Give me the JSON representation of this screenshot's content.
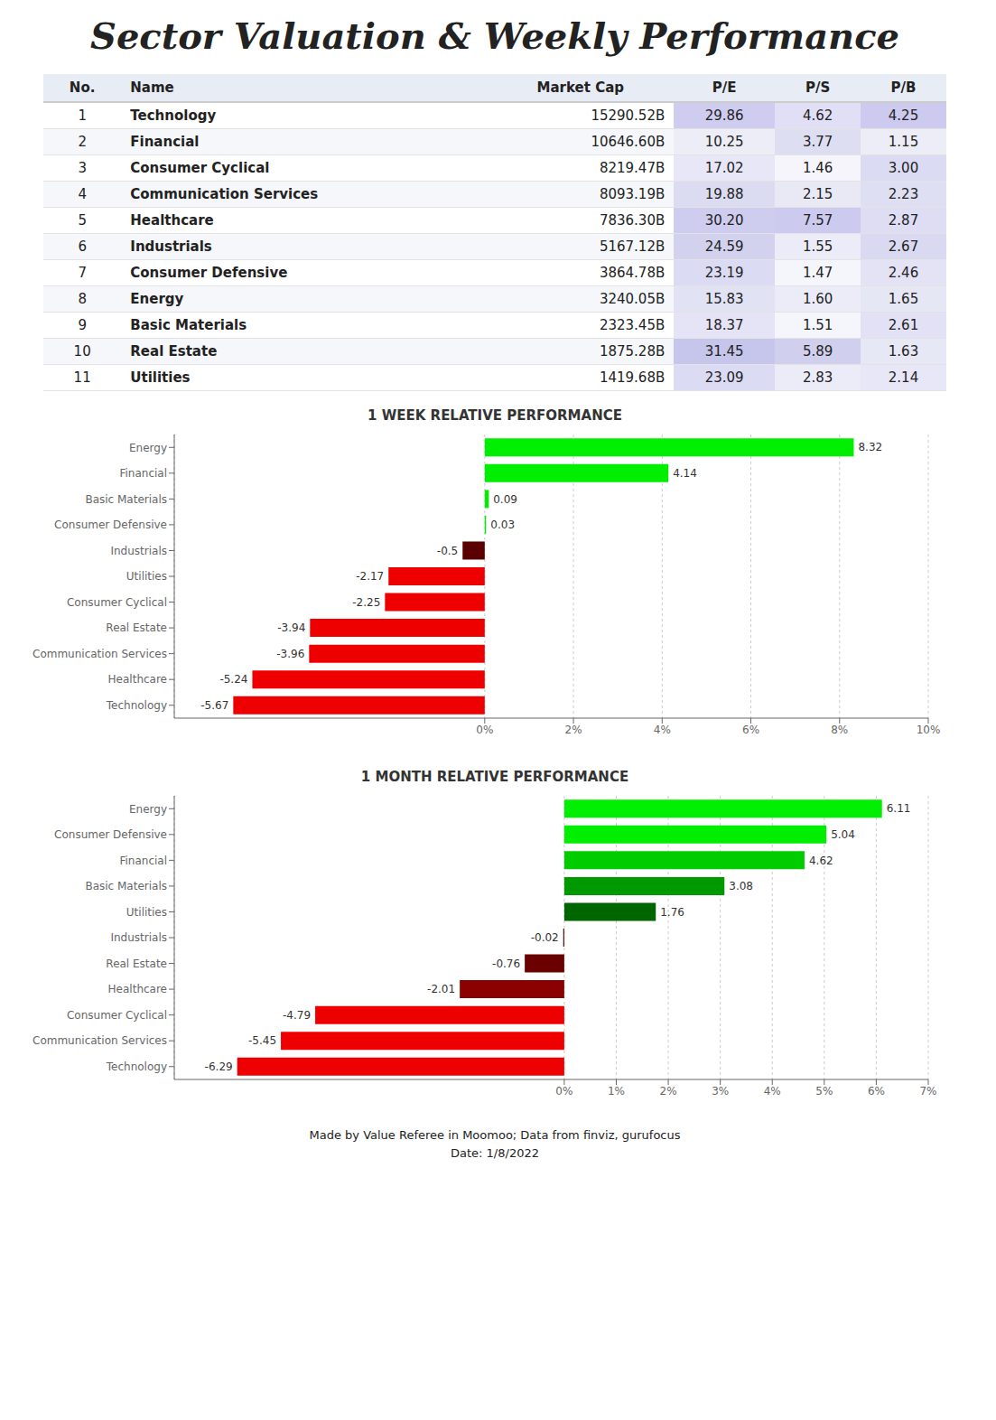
{
  "title": "Sector Valuation & Weekly Performance",
  "annotations": [
    "Made by Value Referee in Moomoo; Data from finviz, gurufocus",
    "Date: 1/8/2022"
  ],
  "chart_data": [
    {
      "type": "table",
      "xlabel": "Name",
      "categories": [
        "Technology",
        "Financial",
        "Consumer Cyclical",
        "Communication Services",
        "Healthcare",
        "Industrials",
        "Consumer Defensive",
        "Energy",
        "Basic Materials",
        "Real Estate",
        "Utilities"
      ],
      "series": [
        {
          "name": "No.",
          "values": [
            1,
            2,
            3,
            4,
            5,
            6,
            7,
            8,
            9,
            10,
            11
          ]
        },
        {
          "name": "Market Cap",
          "values": [
            15290.52,
            10646.6,
            8219.47,
            8093.19,
            7836.3,
            5167.12,
            3864.78,
            3240.05,
            2323.45,
            1875.28,
            1419.68
          ],
          "value_labels": [
            "15290.52B",
            "10646.60B",
            "8219.47B",
            "8093.19B",
            "7836.30B",
            "5167.12B",
            "3864.78B",
            "3240.05B",
            "2323.45B",
            "1875.28B",
            "1419.68B"
          ]
        },
        {
          "name": "P/E",
          "values": [
            29.86,
            10.25,
            17.02,
            19.88,
            30.2,
            24.59,
            23.19,
            15.83,
            18.37,
            31.45,
            23.09
          ],
          "value_labels": [
            "29.86",
            "10.25",
            "17.02",
            "19.88",
            "30.20",
            "24.59",
            "23.19",
            "15.83",
            "18.37",
            "31.45",
            "23.09"
          ]
        },
        {
          "name": "P/S",
          "values": [
            4.62,
            3.77,
            1.46,
            2.15,
            7.57,
            1.55,
            1.47,
            1.6,
            1.51,
            5.89,
            2.83
          ],
          "value_labels": [
            "4.62",
            "3.77",
            "1.46",
            "2.15",
            "7.57",
            "1.55",
            "1.47",
            "1.60",
            "1.51",
            "5.89",
            "2.83"
          ]
        },
        {
          "name": "P/B",
          "values": [
            4.25,
            1.15,
            3.0,
            2.23,
            2.87,
            2.67,
            2.46,
            1.65,
            2.61,
            1.63,
            2.14
          ],
          "value_labels": [
            "4.25",
            "1.15",
            "3.00",
            "2.23",
            "2.87",
            "2.67",
            "2.46",
            "1.65",
            "2.61",
            "1.63",
            "2.14"
          ]
        }
      ]
    },
    {
      "type": "bar",
      "title": "1 WEEK RELATIVE PERFORMANCE",
      "orientation": "horizontal",
      "categories": [
        "Energy",
        "Financial",
        "Basic Materials",
        "Consumer Defensive",
        "Industrials",
        "Utilities",
        "Consumer Cyclical",
        "Real Estate",
        "Communication Services",
        "Healthcare",
        "Technology"
      ],
      "values": [
        8.32,
        4.14,
        0.09,
        0.03,
        -0.5,
        -2.17,
        -2.25,
        -3.94,
        -3.96,
        -5.24,
        -5.67
      ],
      "colors": [
        "#00ee00",
        "#00ee00",
        "#00ee00",
        "#00ee00",
        "#5a0000",
        "#ee0000",
        "#ee0000",
        "#ee0000",
        "#ee0000",
        "#ee0000",
        "#ee0000"
      ],
      "xlim": [
        -7,
        10
      ],
      "xticks": [
        {
          "value": 0,
          "label": "0%"
        },
        {
          "value": 2,
          "label": "2%"
        },
        {
          "value": 4,
          "label": "4%"
        },
        {
          "value": 6,
          "label": "6%"
        },
        {
          "value": 8,
          "label": "8%"
        },
        {
          "value": 10,
          "label": "10%"
        }
      ],
      "grid": true,
      "data_labels": true
    },
    {
      "type": "bar",
      "title": "1 MONTH RELATIVE PERFORMANCE",
      "orientation": "horizontal",
      "categories": [
        "Energy",
        "Consumer Defensive",
        "Financial",
        "Basic Materials",
        "Utilities",
        "Industrials",
        "Real Estate",
        "Healthcare",
        "Consumer Cyclical",
        "Communication Services",
        "Technology"
      ],
      "values": [
        6.11,
        5.04,
        4.62,
        3.08,
        1.76,
        -0.02,
        -0.76,
        -2.01,
        -4.79,
        -5.45,
        -6.29
      ],
      "colors": [
        "#00ee00",
        "#00ee00",
        "#00cc00",
        "#009900",
        "#006600",
        "#4a0000",
        "#6a0000",
        "#8b0000",
        "#ee0000",
        "#ee0000",
        "#ee0000"
      ],
      "xlim": [
        -7.5,
        7
      ],
      "xticks": [
        {
          "value": 0,
          "label": "0%"
        },
        {
          "value": 1,
          "label": "1%"
        },
        {
          "value": 2,
          "label": "2%"
        },
        {
          "value": 3,
          "label": "3%"
        },
        {
          "value": 4,
          "label": "4%"
        },
        {
          "value": 5,
          "label": "5%"
        },
        {
          "value": 6,
          "label": "6%"
        },
        {
          "value": 7,
          "label": "7%"
        }
      ],
      "grid": true,
      "data_labels": true
    }
  ]
}
